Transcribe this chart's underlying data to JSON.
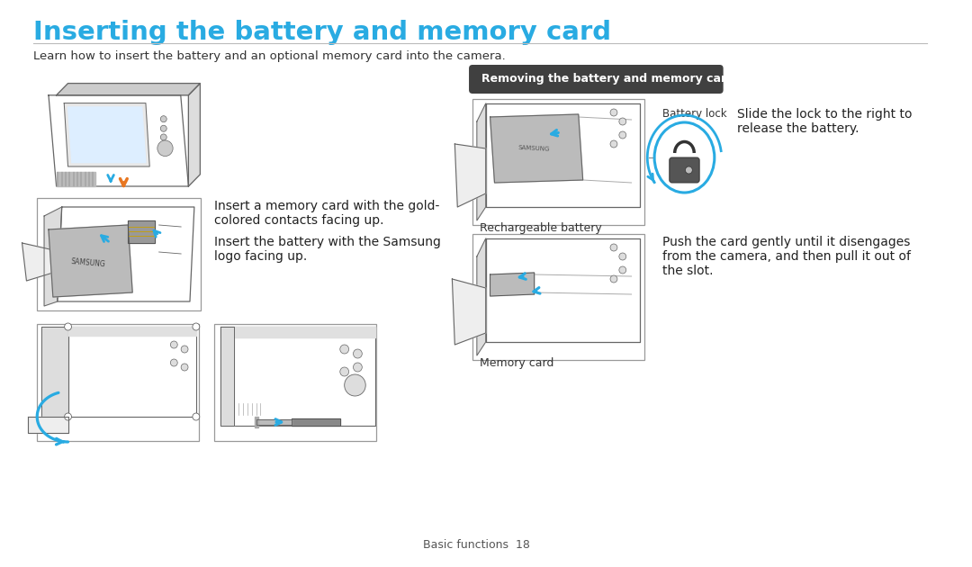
{
  "title": "Inserting the battery and memory card",
  "subtitle": "Learn how to insert the battery and an optional memory card into the camera.",
  "title_color": "#29ABE2",
  "subtitle_color": "#333333",
  "bg_color": "#FFFFFF",
  "section_label": "Removing the battery and memory card",
  "section_label_bg": "#404040",
  "section_label_color": "#FFFFFF",
  "text1_line1": "Insert a memory card with the gold-",
  "text1_line2": "colored contacts facing up.",
  "text2_line1": "Insert the battery with the Samsung",
  "text2_line2": "logo facing up.",
  "text3_line1": "Slide the lock to the right to",
  "text3_line2": "release the battery.",
  "text4_line1": "Push the card gently until it disengages",
  "text4_line2": "from the camera, and then pull it out of",
  "text4_line3": "the slot.",
  "label_rechargeable": "Rechargeable battery",
  "label_memory": "Memory card",
  "label_battery_lock": "Battery lock",
  "footer": "Basic functions  18",
  "footer_color": "#555555",
  "arrow_orange": "#E87722",
  "arrow_blue": "#29ABE2",
  "line_color": "#AAAAAA",
  "border_color": "#999999",
  "cam_line": "#666666",
  "cam_fill": "#F0F0F0",
  "cam_dark": "#CCCCCC"
}
